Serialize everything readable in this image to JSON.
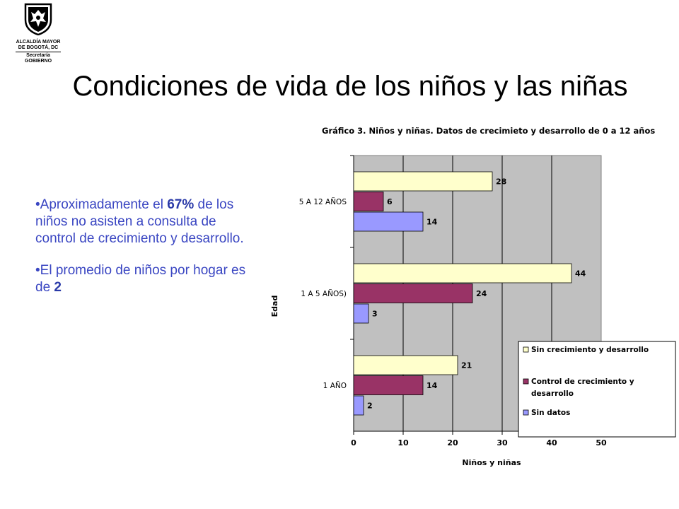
{
  "logo": {
    "line1": "ALCALDÍA MAYOR",
    "line2": "DE BOGOTÁ, DC",
    "line3": "Secretaría",
    "line4": "GOBIERNO"
  },
  "slide": {
    "title": "Condiciones de vida de los niños y las niñas"
  },
  "bullets": [
    {
      "bullet": "•",
      "pre": "Aproximadamente el ",
      "bold": "67%",
      "post": " de los niños no asisten a consulta de control de crecimiento y desarrollo."
    },
    {
      "bullet": "•",
      "pre": "El promedio de niños por hogar es de ",
      "bold": "2",
      "post": ""
    }
  ],
  "chart_data": {
    "type": "bar",
    "orientation": "horizontal",
    "title": "Gráfico 3. Niños y niñas. Datos de crecimieto y desarrollo de 0 a 12 años",
    "xlabel": "Niños y niñas",
    "ylabel": "Edad",
    "categories": [
      "5 A 12 AÑOS",
      "1 A 5 AÑOS)",
      "1 AÑO"
    ],
    "series": [
      {
        "name": "Sin crecimiento y desarrollo",
        "color": "#ffffcc",
        "values": [
          28,
          44,
          21
        ]
      },
      {
        "name": "Control de crecimiento y desarrollo",
        "color": "#993366",
        "values": [
          6,
          24,
          14
        ]
      },
      {
        "name": "Sin datos",
        "color": "#9999ff",
        "values": [
          14,
          3,
          2
        ]
      }
    ],
    "xlim": [
      0,
      50
    ],
    "xticks": [
      0,
      10,
      20,
      30,
      40,
      50
    ],
    "plot_background": "#c0c0c0",
    "grid": true,
    "legend_position": "bottom-right"
  }
}
